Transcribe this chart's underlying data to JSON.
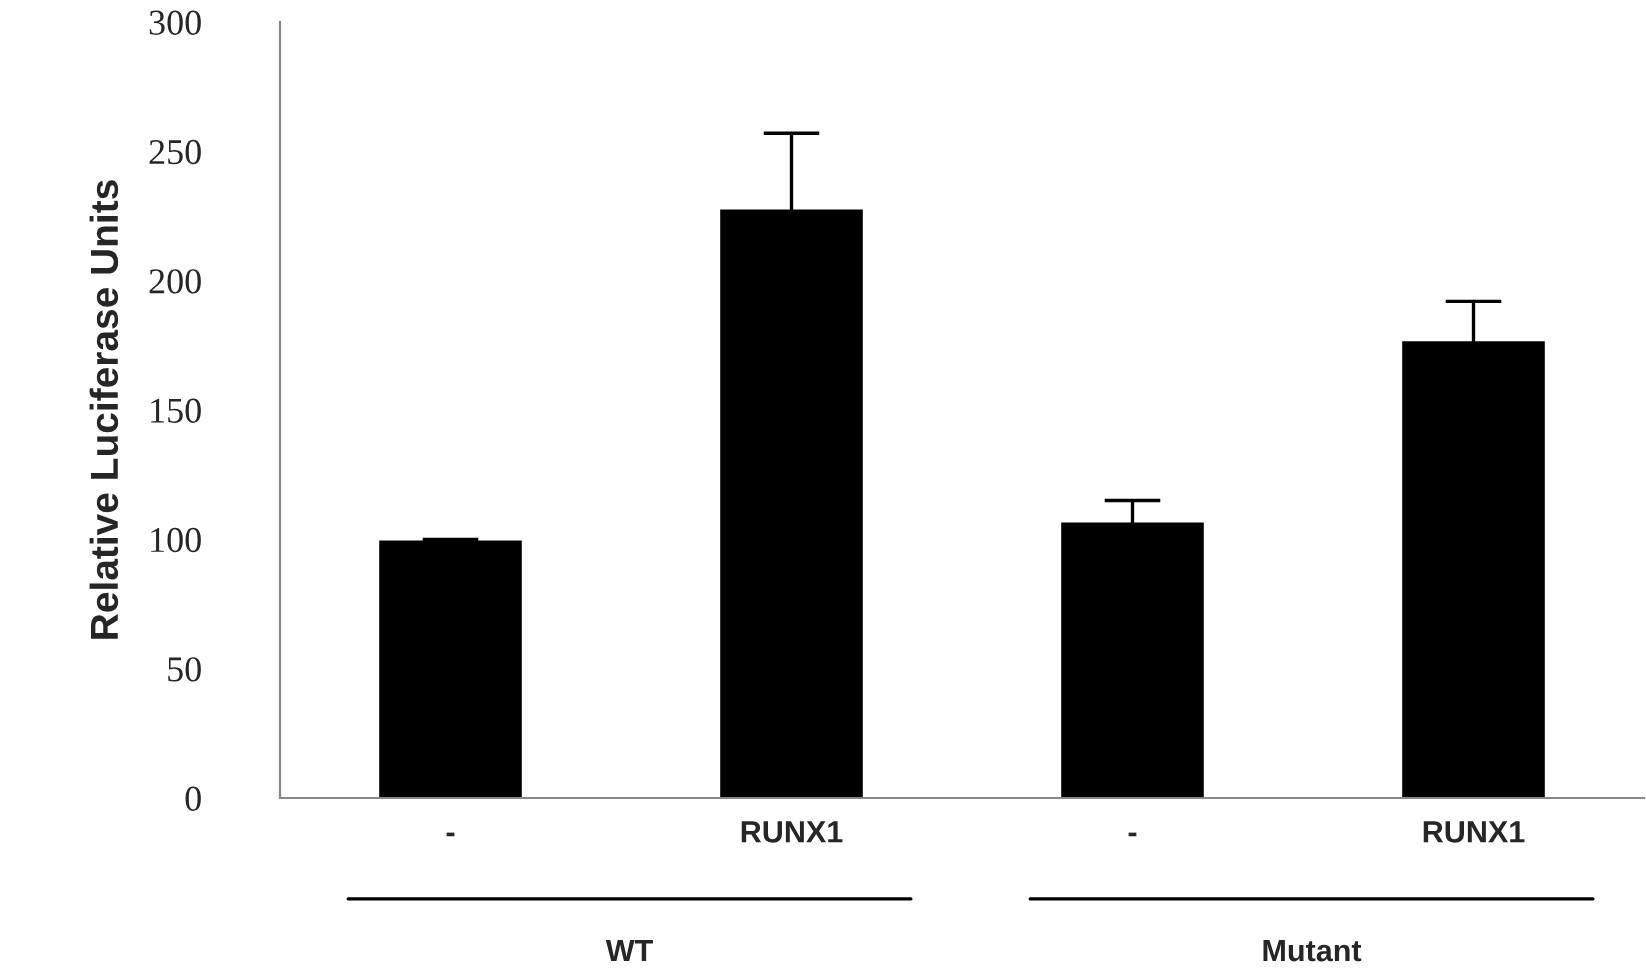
{
  "chart_data": {
    "type": "bar",
    "ylabel": "Relative Luciferase Units",
    "categories": [
      "-",
      "RUNX1",
      "-",
      "RUNX1"
    ],
    "values": [
      99,
      227,
      106,
      176
    ],
    "errors": [
      1,
      30,
      9,
      16
    ],
    "color": "#000000",
    "ylim": [
      0,
      300
    ],
    "yticks": [
      0,
      50,
      100,
      150,
      200,
      250,
      300
    ],
    "grid": false,
    "legend": false,
    "annotations": [
      "WT",
      "Mutant"
    ]
  }
}
